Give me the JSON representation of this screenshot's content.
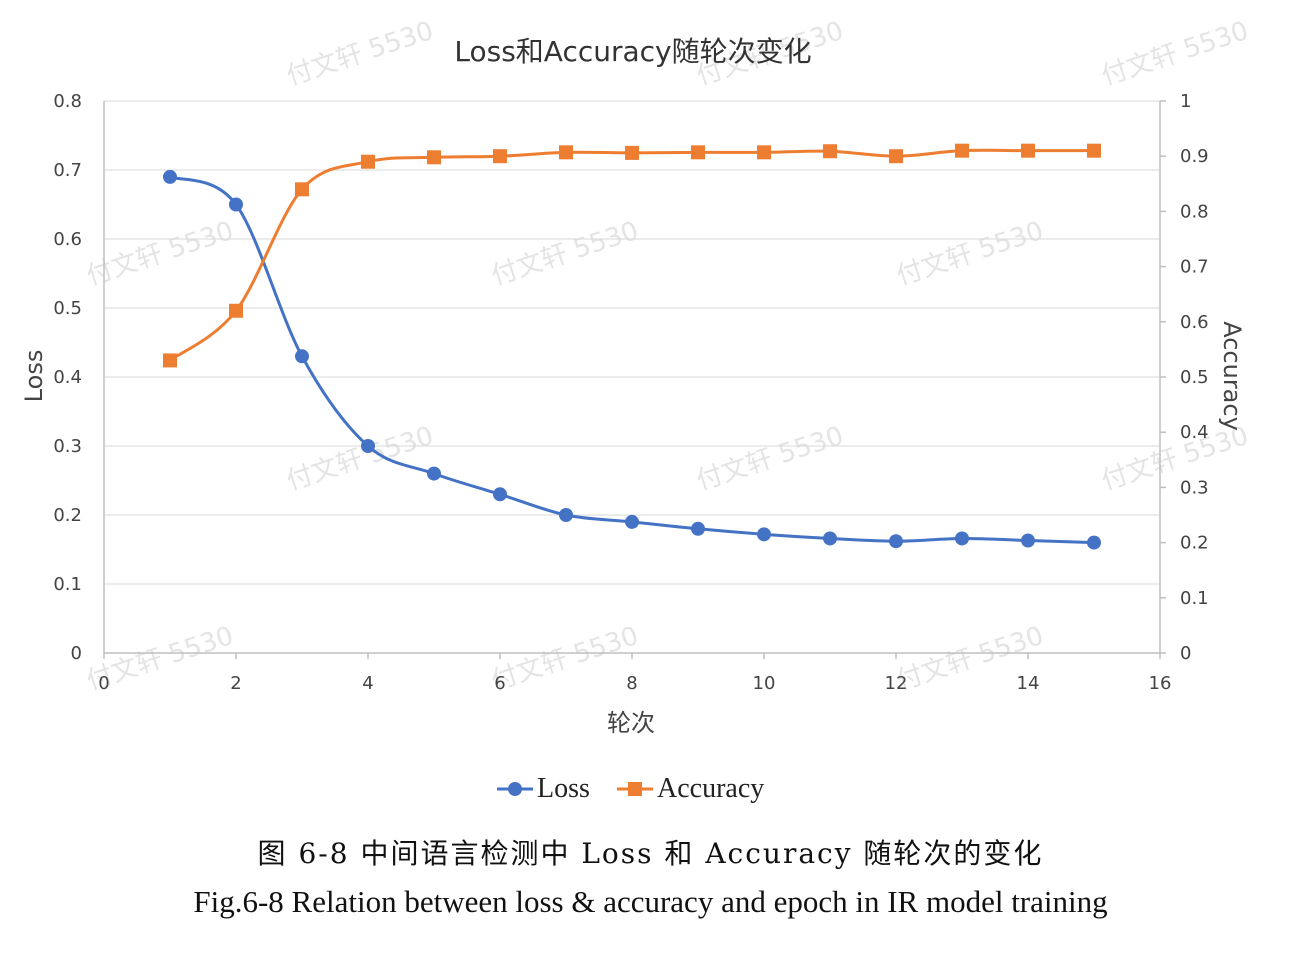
{
  "watermark": "付文轩 5530",
  "caption": {
    "cn": "图 6-8  中间语言检测中 Loss 和 Accuracy 随轮次的变化",
    "en": "Fig.6-8 Relation between loss & accuracy and epoch in IR model training"
  },
  "chart_data": {
    "type": "line",
    "title": "Loss和Accuracy随轮次变化",
    "xlabel": "轮次",
    "ylabel": "Loss",
    "y2label": "Accuracy",
    "xlim": [
      0,
      16
    ],
    "xticks": [
      0,
      2,
      4,
      6,
      8,
      10,
      12,
      14,
      16
    ],
    "ylim": [
      0,
      0.8
    ],
    "yticks": [
      0,
      0.1,
      0.2,
      0.3,
      0.4,
      0.5,
      0.6,
      0.7,
      0.8
    ],
    "y2lim": [
      0,
      1
    ],
    "y2ticks": [
      0,
      0.1,
      0.2,
      0.3,
      0.4,
      0.5,
      0.6,
      0.7,
      0.8,
      0.9,
      1
    ],
    "grid": true,
    "legend": "bottom",
    "x": [
      1,
      2,
      3,
      4,
      5,
      6,
      7,
      8,
      9,
      10,
      11,
      12,
      13,
      14,
      15
    ],
    "series": [
      {
        "name": "Loss",
        "axis": "left",
        "color": "#4472C4",
        "marker": "circle",
        "values": [
          0.69,
          0.65,
          0.43,
          0.3,
          0.26,
          0.23,
          0.2,
          0.19,
          0.18,
          0.172,
          0.166,
          0.162,
          0.166,
          0.163,
          0.16
        ]
      },
      {
        "name": "Accuracy",
        "axis": "right",
        "color": "#ED7D31",
        "marker": "square",
        "values": [
          0.53,
          0.62,
          0.84,
          0.89,
          0.898,
          0.9,
          0.907,
          0.906,
          0.907,
          0.907,
          0.909,
          0.9,
          0.91,
          0.91,
          0.91
        ]
      }
    ]
  }
}
